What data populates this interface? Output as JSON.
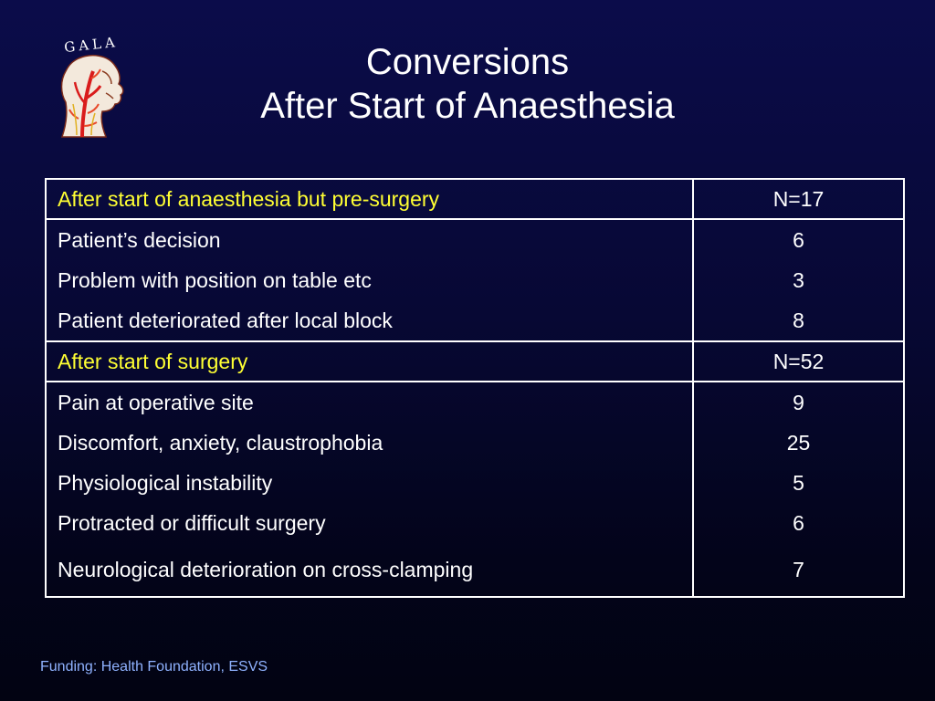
{
  "logo": {
    "text": "GALA",
    "icon": "anatomical-head-neck-illustration"
  },
  "title": {
    "line1": "Conversions",
    "line2": "After Start of Anaesthesia"
  },
  "table": {
    "sections": [
      {
        "header": "After start of anaesthesia but pre-surgery",
        "total": "N=17",
        "rows": [
          {
            "label": "Patient’s decision",
            "value": "6"
          },
          {
            "label": "Problem with position on table etc",
            "value": "3"
          },
          {
            "label": "Patient deteriorated after local block",
            "value": "8"
          }
        ]
      },
      {
        "header": "After start of surgery",
        "total": "N=52",
        "rows": [
          {
            "label": "Pain at operative site",
            "value": "9"
          },
          {
            "label": "Discomfort, anxiety, claustrophobia",
            "value": "25"
          },
          {
            "label": "Physiological instability",
            "value": "5"
          },
          {
            "label": "Protracted or difficult surgery",
            "value": "6"
          },
          {
            "label": "Neurological deterioration on cross-clamping",
            "value": "7"
          }
        ]
      }
    ]
  },
  "footer": {
    "text": "Funding: Health Foundation, ESVS"
  },
  "colors": {
    "background": "#070834",
    "section_header_text": "#ffff33",
    "body_text": "#ffffff",
    "footer_text": "#8fb2ff"
  }
}
